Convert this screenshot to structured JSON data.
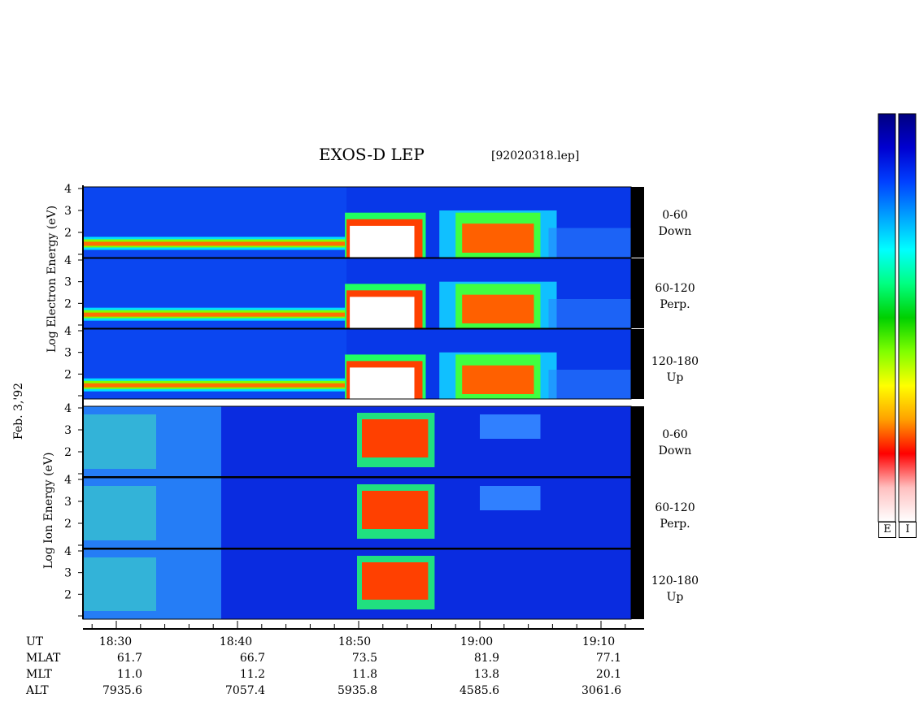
{
  "header": {
    "title": "EXOS-D LEP",
    "file": "[92020318.lep]"
  },
  "date_label": "Feb. 3,'92",
  "electron_group": {
    "ylabel": "Log Electron Energy (eV)",
    "panels": [
      {
        "label_line1": "0-60",
        "label_line2": "Down"
      },
      {
        "label_line1": "60-120",
        "label_line2": "Perp."
      },
      {
        "label_line1": "120-180",
        "label_line2": "Up"
      }
    ]
  },
  "ion_group": {
    "ylabel": "Log Ion Energy (eV)",
    "panels": [
      {
        "label_line1": "0-60",
        "label_line2": "Down"
      },
      {
        "label_line1": "60-120",
        "label_line2": "Perp."
      },
      {
        "label_line1": "120-180",
        "label_line2": "Up"
      }
    ]
  },
  "colorbar": {
    "labels": [
      "E",
      "I"
    ],
    "colors": [
      "#000080",
      "#0000d0",
      "#0040ff",
      "#00a0ff",
      "#00ffff",
      "#00ff80",
      "#00d000",
      "#80ff00",
      "#ffff00",
      "#ffa000",
      "#ff0000",
      "#ffc0c0",
      "#ffffff"
    ]
  },
  "footer": {
    "row_labels": [
      "UT",
      "MLAT",
      "MLT",
      "ALT"
    ],
    "columns": [
      {
        "ut": "18:30",
        "mlat": "61.7",
        "mlt": "11.0",
        "alt": "7935.6"
      },
      {
        "ut": "18:40",
        "mlat": "66.7",
        "mlt": "11.2",
        "alt": "7057.4"
      },
      {
        "ut": "18:50",
        "mlat": "73.5",
        "mlt": "11.8",
        "alt": "5935.8"
      },
      {
        "ut": "19:00",
        "mlat": "81.9",
        "mlt": "13.8",
        "alt": "4585.6"
      },
      {
        "ut": "19:10",
        "mlat": "77.1",
        "mlt": "20.1",
        "alt": "3061.6"
      }
    ]
  },
  "chart_data": {
    "type": "heatmap",
    "title": "EXOS-D LEP",
    "x_unit": "UT (minutes)",
    "x_ticks": [
      "18:30",
      "18:40",
      "18:50",
      "19:00",
      "19:10"
    ],
    "x_range_min": [
      1108,
      1152
    ],
    "y_ticks": [
      1,
      2,
      3,
      4
    ],
    "ylim": [
      1,
      4
    ],
    "features": {
      "electron_plasma_line_ylog": 1.5,
      "electron_burst_start_min": 1129,
      "electron_burst_peak_end_min": 1135,
      "electron_patches_min": [
        1138,
        1145
      ],
      "ion_dispersion_min": [
        1130,
        1136
      ],
      "ion_weak_patch_min": [
        1140,
        1145
      ]
    }
  }
}
